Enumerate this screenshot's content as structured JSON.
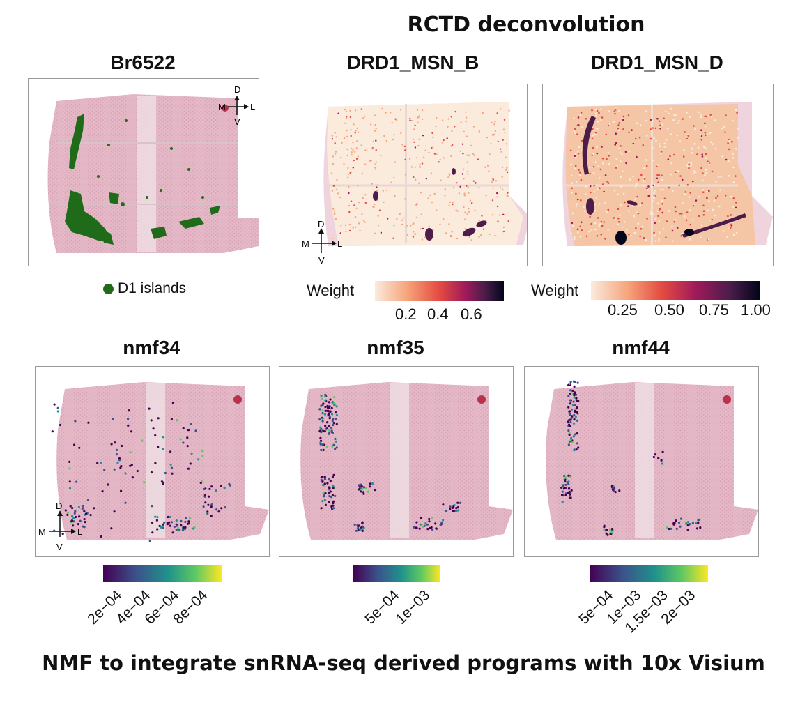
{
  "header": {
    "title": "RCTD deconvolution"
  },
  "footer": {
    "text": "NMF to integrate snRNA-seq derived programs with 10x Visium"
  },
  "compass": {
    "d": "D",
    "v": "V",
    "m": "M",
    "l": "L"
  },
  "top_panels": [
    {
      "title": "Br6522",
      "legend": "D1 islands",
      "legend_color": "#1f6b1a"
    },
    {
      "title": "DRD1_MSN_B",
      "legend_title": "Weight",
      "ticks": [
        "0.2",
        "0.4",
        "0.6"
      ]
    },
    {
      "title": "DRD1_MSN_D",
      "legend_title": "Weight",
      "ticks": [
        "0.25",
        "0.50",
        "0.75",
        "1.00"
      ]
    }
  ],
  "bottom_panels": [
    {
      "title": "nmf34",
      "ticks": [
        "2e−04",
        "4e−04",
        "6e−04",
        "8e−04"
      ]
    },
    {
      "title": "nmf35",
      "ticks": [
        "5e−04",
        "1e−03"
      ]
    },
    {
      "title": "nmf44",
      "ticks": [
        "5e−04",
        "1e−03",
        "1.5e−03",
        "2e−03"
      ]
    }
  ],
  "colors": {
    "tissue": "#e4b8c6",
    "rocket": [
      "#faebdd",
      "#f6a47b",
      "#e44b41",
      "#a11a5b",
      "#4c1d4b",
      "#03051a"
    ],
    "viridis": [
      "#440154",
      "#3b528b",
      "#21918c",
      "#5ec962",
      "#fde725"
    ]
  }
}
